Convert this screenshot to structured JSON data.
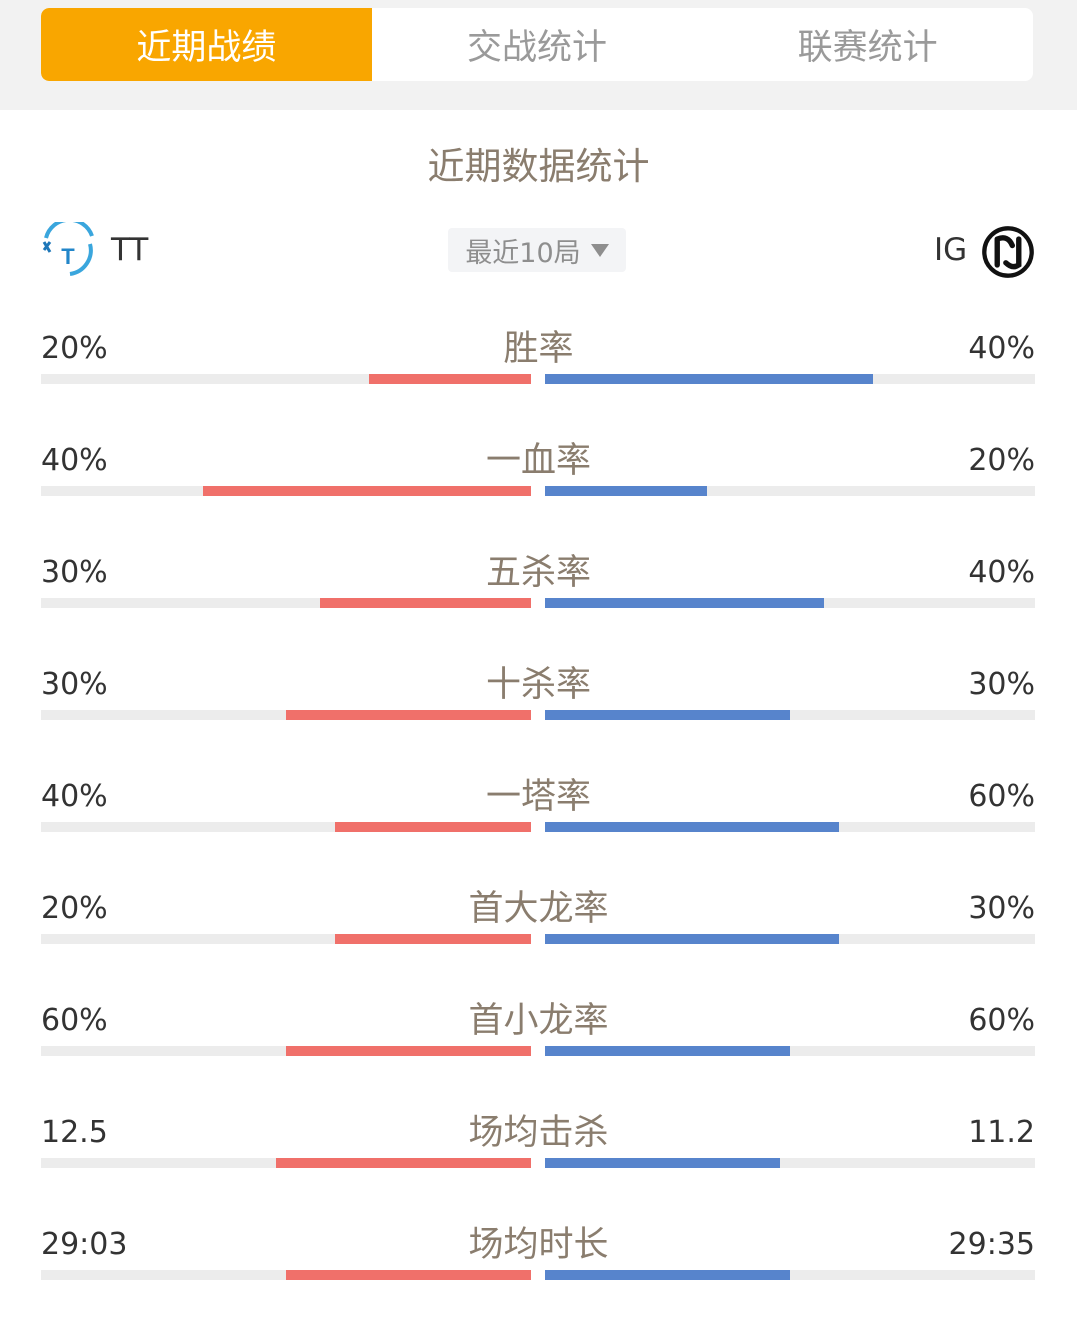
{
  "tabs": [
    {
      "label": "近期战绩",
      "active": true
    },
    {
      "label": "交战统计",
      "active": false
    },
    {
      "label": "联赛统计",
      "active": false
    }
  ],
  "section_title": "近期数据统计",
  "team_left": {
    "name": "TT",
    "logo_icon": "tt-logo-icon"
  },
  "team_right": {
    "name": "IG",
    "logo_icon": "ig-logo-icon"
  },
  "filter": {
    "label": "最近10局"
  },
  "colors": {
    "accent": "#f9a600",
    "left_bar": "#f0706a",
    "right_bar": "#5784cc",
    "track": "#ececec"
  },
  "stats": [
    {
      "label": "胜率",
      "left": "20%",
      "right": "40%",
      "left_fill": 0.33,
      "right_fill": 0.67
    },
    {
      "label": "一血率",
      "left": "40%",
      "right": "20%",
      "left_fill": 0.67,
      "right_fill": 0.33
    },
    {
      "label": "五杀率",
      "left": "30%",
      "right": "40%",
      "left_fill": 0.43,
      "right_fill": 0.57
    },
    {
      "label": "十杀率",
      "left": "30%",
      "right": "30%",
      "left_fill": 0.5,
      "right_fill": 0.5
    },
    {
      "label": "一塔率",
      "left": "40%",
      "right": "60%",
      "left_fill": 0.4,
      "right_fill": 0.6
    },
    {
      "label": "首大龙率",
      "left": "20%",
      "right": "30%",
      "left_fill": 0.4,
      "right_fill": 0.6
    },
    {
      "label": "首小龙率",
      "left": "60%",
      "right": "60%",
      "left_fill": 0.5,
      "right_fill": 0.5
    },
    {
      "label": "场均击杀",
      "left": "12.5",
      "right": "11.2",
      "left_fill": 0.52,
      "right_fill": 0.48
    },
    {
      "label": "场均时长",
      "left": "29:03",
      "right": "29:35",
      "left_fill": 0.5,
      "right_fill": 0.5
    }
  ]
}
